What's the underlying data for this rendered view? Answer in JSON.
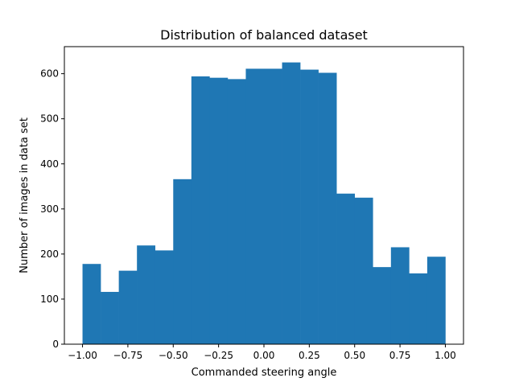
{
  "chart_data": {
    "type": "bar",
    "title": "Distribution of balanced dataset",
    "xlabel": "Commanded steering angle",
    "ylabel": "Number of images in data set",
    "xlim": [
      -1.1,
      1.1
    ],
    "ylim": [
      0,
      660
    ],
    "grid": false,
    "bin_edges": [
      -1.0,
      -0.9,
      -0.8,
      -0.7,
      -0.6,
      -0.5,
      -0.4,
      -0.3,
      -0.2,
      -0.1,
      0.0,
      0.1,
      0.2,
      0.3,
      0.4,
      0.5,
      0.6,
      0.7,
      0.8,
      0.9,
      1.0
    ],
    "values": [
      178,
      116,
      163,
      219,
      208,
      366,
      594,
      591,
      588,
      611,
      611,
      625,
      609,
      602,
      334,
      325,
      171,
      215,
      157,
      194
    ],
    "x_ticks": [
      -1.0,
      -0.75,
      -0.5,
      -0.25,
      0.0,
      0.25,
      0.5,
      0.75,
      1.0
    ],
    "x_tick_labels": [
      "−1.00",
      "−0.75",
      "−0.50",
      "−0.25",
      "0.00",
      "0.25",
      "0.50",
      "0.75",
      "1.00"
    ],
    "y_ticks": [
      0,
      100,
      200,
      300,
      400,
      500,
      600
    ],
    "y_tick_labels": [
      "0",
      "100",
      "200",
      "300",
      "400",
      "500",
      "600"
    ],
    "bar_color": "#1f77b4"
  }
}
